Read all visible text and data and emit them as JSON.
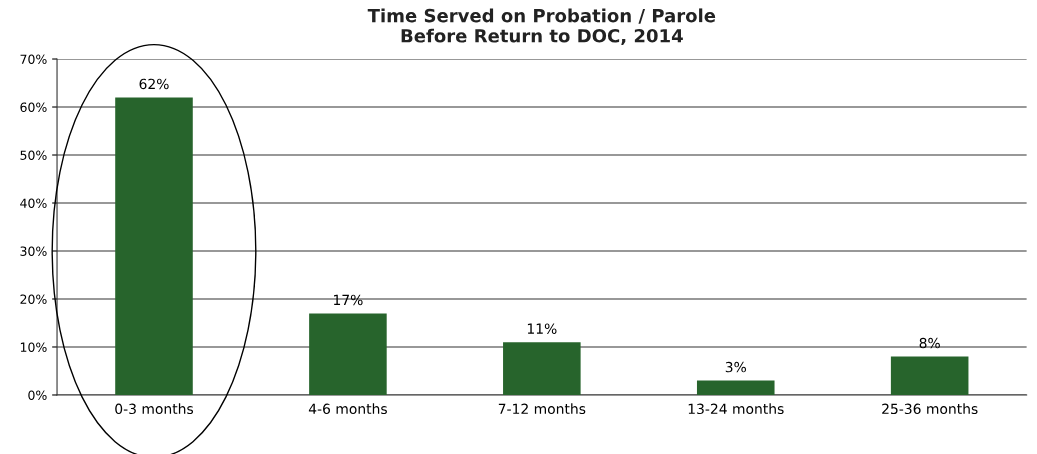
{
  "chart_data": {
    "type": "bar",
    "title": "Time Served on Probation / Parole\nBefore Return to DOC, 2014",
    "categories": [
      "0-3 months",
      "4-6 months",
      "7-12 months",
      "13-24 months",
      "25-36 months"
    ],
    "values": [
      62,
      17,
      11,
      3,
      8
    ],
    "value_labels": [
      "62%",
      "17%",
      "11%",
      "3%",
      "8%"
    ],
    "color": "#27642c",
    "ylim": [
      0,
      70
    ],
    "yticks": [
      {
        "value": 0,
        "label": "0%"
      },
      {
        "value": 10,
        "label": "10%"
      },
      {
        "value": 20,
        "label": "20%"
      },
      {
        "value": 30,
        "label": "30%"
      },
      {
        "value": 40,
        "label": "40%"
      },
      {
        "value": 50,
        "label": "50%"
      },
      {
        "value": 60,
        "label": "60%"
      },
      {
        "value": 70,
        "label": "70%"
      }
    ],
    "grid": "y",
    "legend": false
  }
}
